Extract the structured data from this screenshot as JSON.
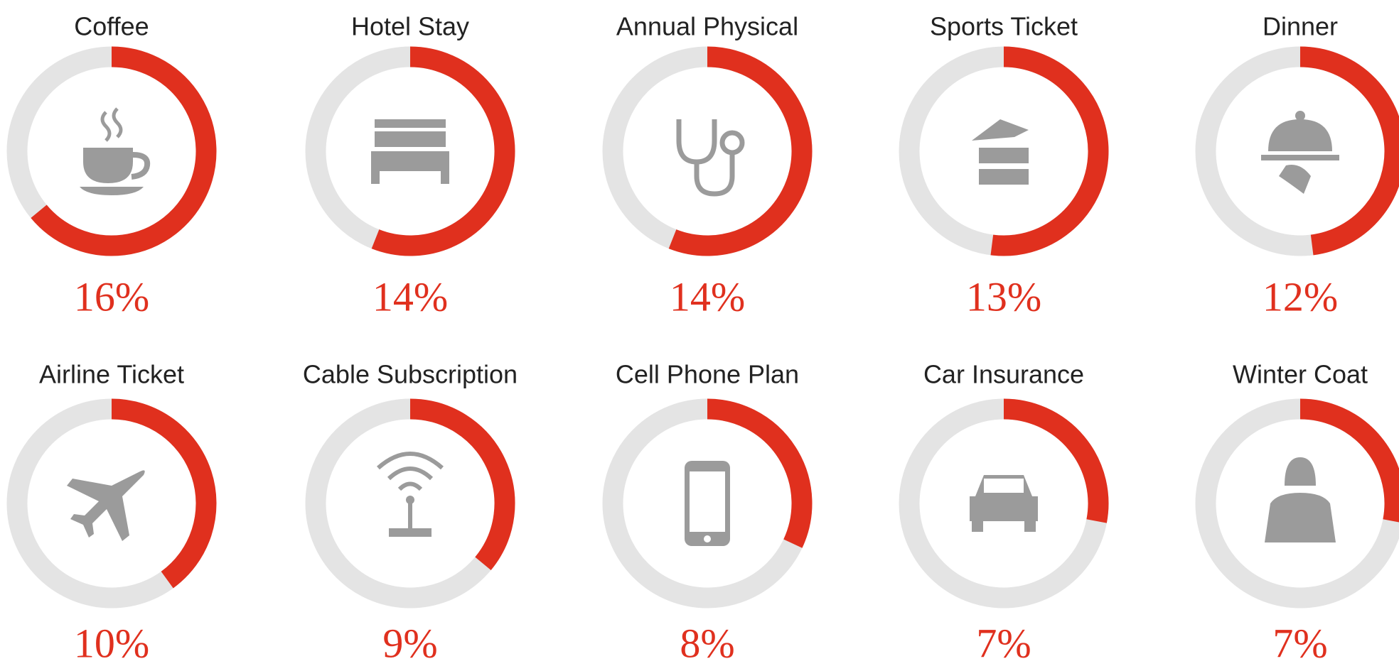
{
  "chart_data": {
    "type": "gauge",
    "categories": [
      "Coffee",
      "Hotel Stay",
      "Annual Physical",
      "Sports Ticket",
      "Dinner",
      "Airline Ticket",
      "Cable Subscription",
      "Cell Phone Plan",
      "Car Insurance",
      "Winter Coat"
    ],
    "values": [
      16,
      14,
      14,
      13,
      12,
      10,
      9,
      8,
      7,
      7
    ],
    "value_labels": [
      "16%",
      "14%",
      "14%",
      "13%",
      "12%",
      "10%",
      "9%",
      "8%",
      "7%",
      "7%"
    ],
    "ylim": [
      0,
      25
    ],
    "color": "#e0301e",
    "track_color": "#e4e4e4"
  }
}
